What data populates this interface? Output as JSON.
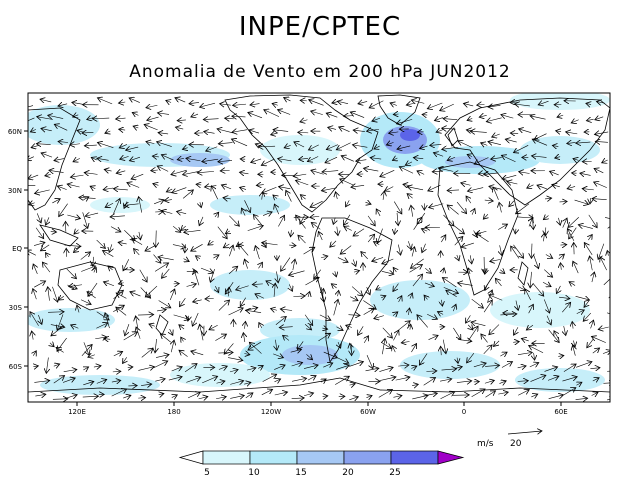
{
  "title": "INPE/CPTEC",
  "subtitle": "Anomalia de Vento em 200 hPa JUN2012",
  "map": {
    "lat_labels": [
      "60N",
      "30N",
      "EQ",
      "30S",
      "60S"
    ],
    "lon_labels": [
      "120E",
      "180",
      "120W",
      "60W",
      "0",
      "60E"
    ],
    "colors": {
      "land_outline": "#000000",
      "frame": "#000000"
    }
  },
  "reference_vector": {
    "unit": "m/s",
    "value": "20"
  },
  "colorbar": {
    "labels": [
      "5",
      "10",
      "15",
      "20",
      "25"
    ],
    "colors": [
      "#ffffff",
      "#d8f6fb",
      "#b4e9f8",
      "#a6c8f4",
      "#8aa2ef",
      "#5b64e8",
      "#a000c8"
    ]
  }
}
